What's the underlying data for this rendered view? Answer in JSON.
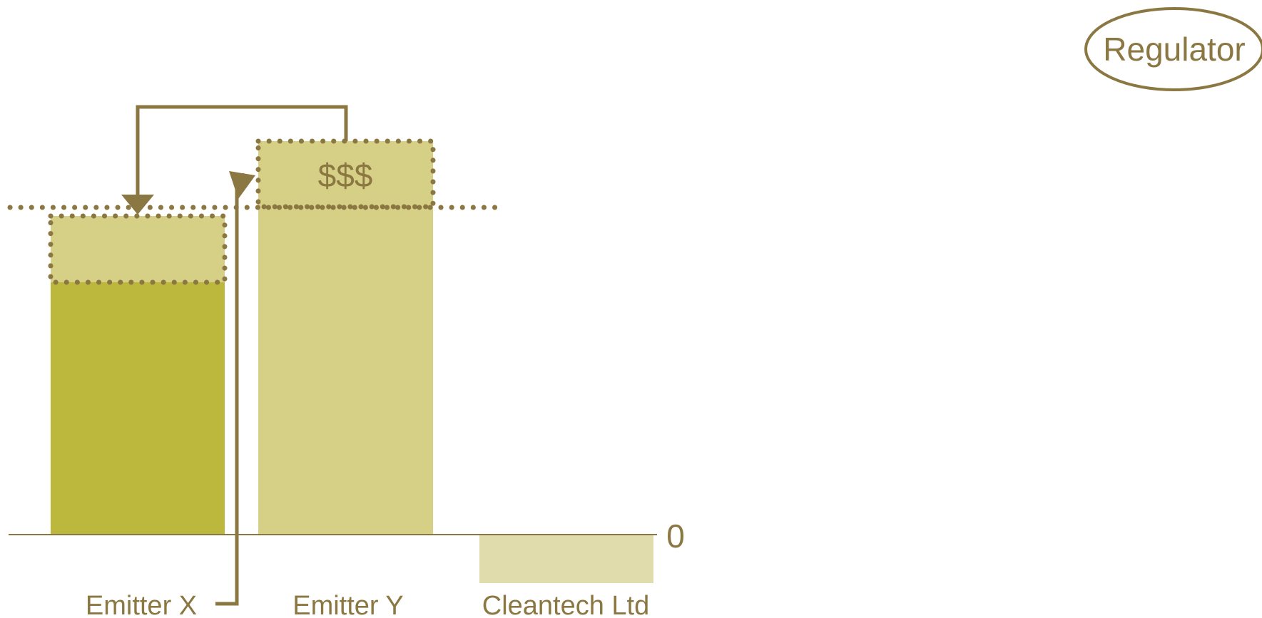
{
  "regulator": {
    "label": "Regulator"
  },
  "baseline": {
    "label": "0"
  },
  "entities": [
    {
      "label": "Emitter X"
    },
    {
      "label": "Emitter Y"
    },
    {
      "label": "Cleantech Ltd"
    }
  ],
  "transfer": {
    "label": "$$$"
  },
  "colors": {
    "outline": "#8b7742",
    "emitter_x_bar": "#bcb83e",
    "emitter_y_bar": "#d6cf86",
    "cleantech_bar": "#e1dcab",
    "allowance_box": "#d6cf86"
  }
}
